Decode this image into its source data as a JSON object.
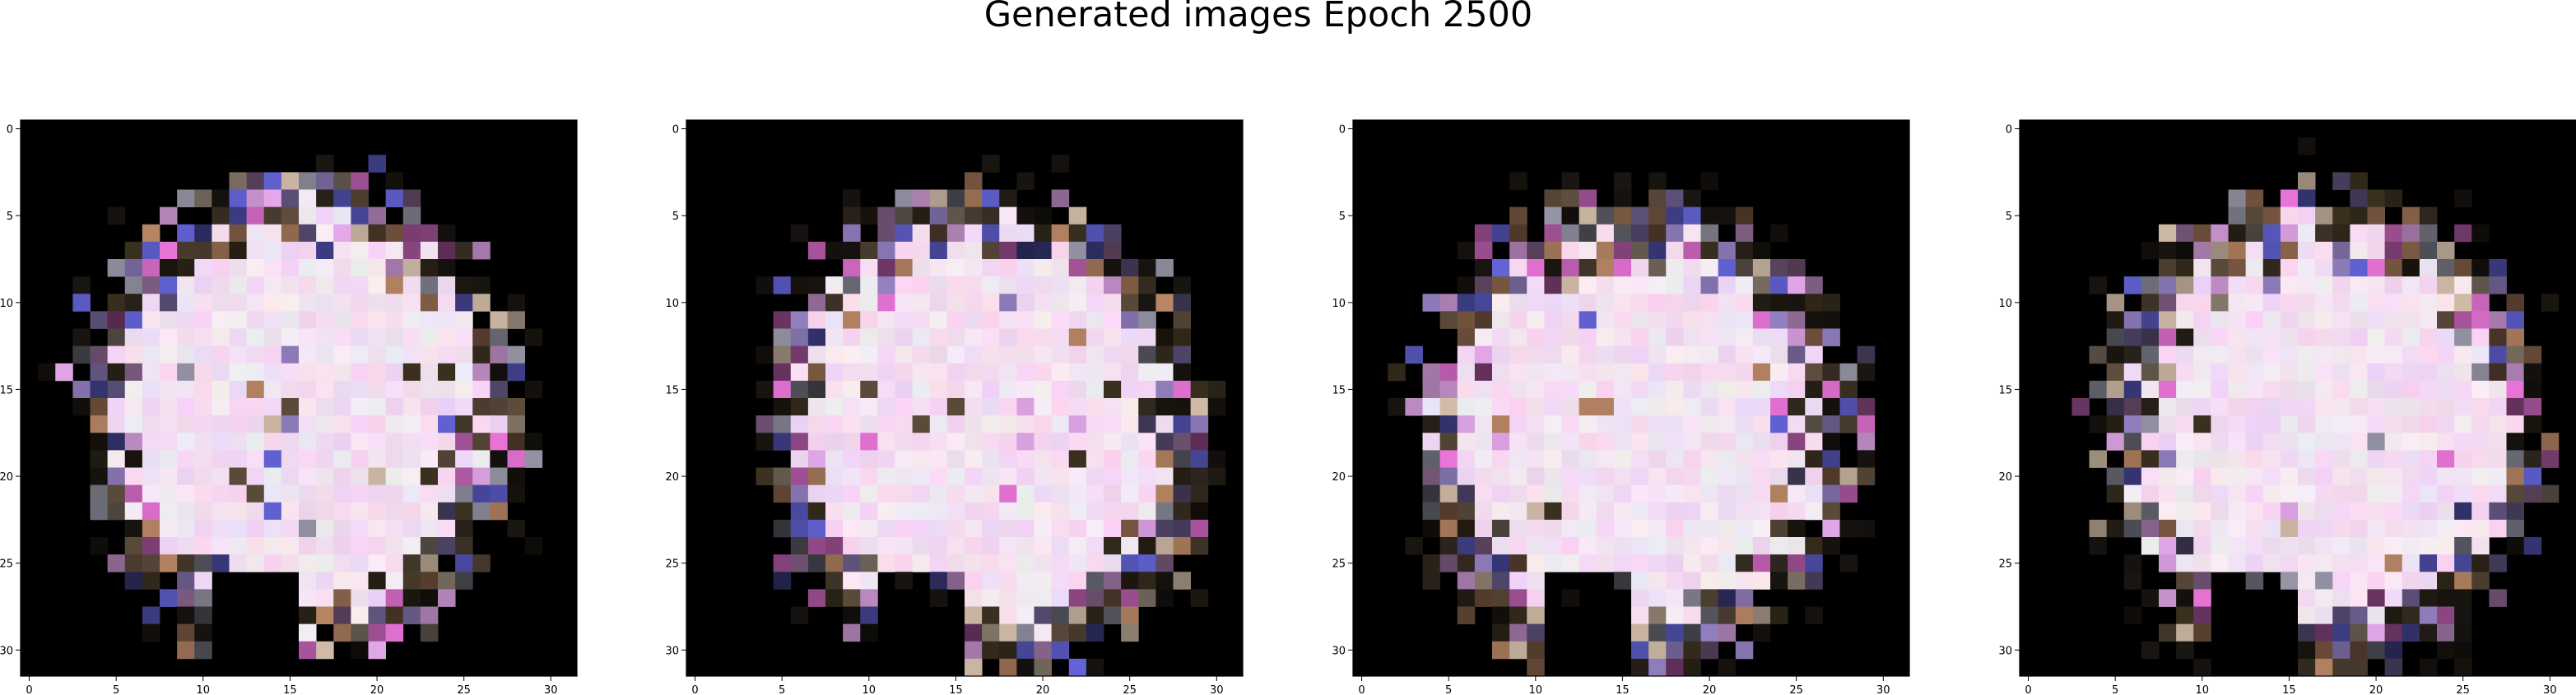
{
  "chart_data": {
    "type": "heatmap",
    "title": "Generated images Epoch 2500",
    "panels": [
      {
        "name": "image-1",
        "tick_labels": [
          "0",
          "5",
          "10",
          "15",
          "20",
          "25",
          "30"
        ],
        "xlim": [
          -0.5,
          31.5
        ],
        "ylim": [
          31.5,
          -0.5
        ],
        "grid_size": 32,
        "seed": 11
      },
      {
        "name": "image-2",
        "tick_labels": [
          "0",
          "5",
          "10",
          "15",
          "20",
          "25",
          "30"
        ],
        "xlim": [
          -0.5,
          31.5
        ],
        "ylim": [
          31.5,
          -0.5
        ],
        "grid_size": 32,
        "seed": 23
      },
      {
        "name": "image-3",
        "tick_labels": [
          "0",
          "5",
          "10",
          "15",
          "20",
          "25",
          "30"
        ],
        "xlim": [
          -0.5,
          31.5
        ],
        "ylim": [
          31.5,
          -0.5
        ],
        "grid_size": 32,
        "seed": 37
      },
      {
        "name": "image-4",
        "tick_labels": [
          "0",
          "5",
          "10",
          "15",
          "20",
          "25",
          "30"
        ],
        "xlim": [
          -0.5,
          31.5
        ],
        "ylim": [
          31.5,
          -0.5
        ],
        "grid_size": 32,
        "seed": 53
      }
    ],
    "colors": {
      "background": "#000000",
      "body": "#fbeef8",
      "accents": [
        "#d9a0e0",
        "#8c7ab8",
        "#5a4a3a",
        "#c8b4a0",
        "#e070d0",
        "#6060d0",
        "#3a3020",
        "#b08060",
        "#9090a0"
      ]
    }
  }
}
